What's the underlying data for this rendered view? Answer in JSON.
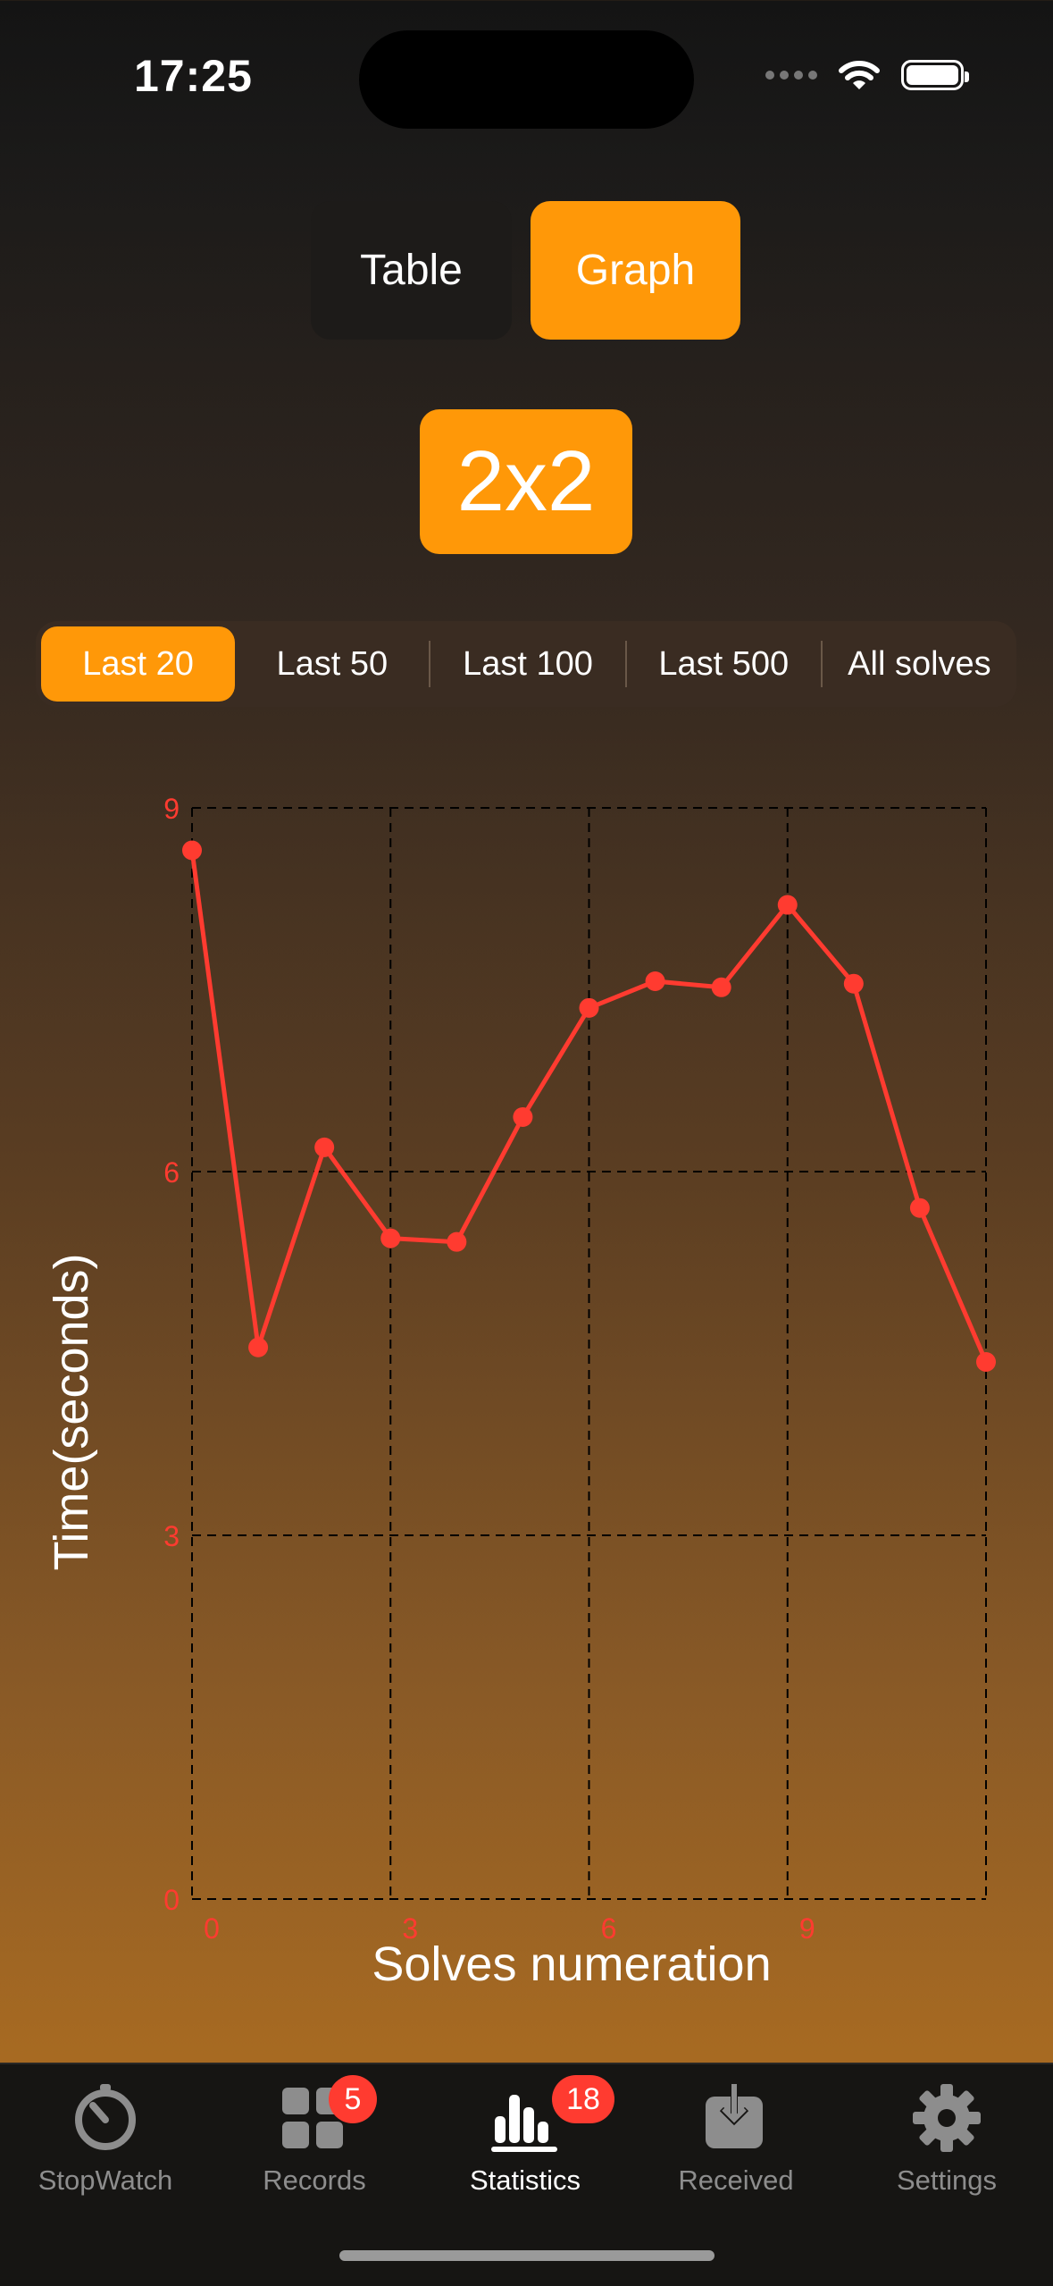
{
  "status": {
    "time": "17:25"
  },
  "mode": {
    "table_label": "Table",
    "graph_label": "Graph",
    "active": "Graph"
  },
  "puzzle": {
    "label": "2x2"
  },
  "ranges": [
    "Last 20",
    "Last 50",
    "Last 100",
    "Last 500",
    "All solves"
  ],
  "active_range": "Last 20",
  "colors": {
    "accent": "#ff9808",
    "line": "#ff3b30",
    "badge": "#ff3b30"
  },
  "chart_data": {
    "type": "line",
    "xlabel": "Solves numeration",
    "ylabel": "Time(seconds)",
    "ylim": [
      0,
      9
    ],
    "yticks": [
      0,
      3,
      6,
      9
    ],
    "xticks": [
      0,
      3,
      6,
      9
    ],
    "xlim": [
      0,
      12
    ],
    "grid": true,
    "series": [
      {
        "x": [
          0,
          1,
          2,
          3,
          4,
          5,
          6,
          7,
          8,
          9,
          10,
          11,
          12
        ],
        "values": [
          8.65,
          4.55,
          6.2,
          5.45,
          5.42,
          6.45,
          7.35,
          7.57,
          7.52,
          8.2,
          7.55,
          5.7,
          4.43
        ]
      }
    ]
  },
  "tabs": [
    {
      "label": "StopWatch",
      "icon": "stopwatch-icon",
      "badge": ""
    },
    {
      "label": "Records",
      "icon": "grid-icon",
      "badge": "5"
    },
    {
      "label": "Statistics",
      "icon": "chart-icon",
      "badge": "18"
    },
    {
      "label": "Received",
      "icon": "download-tray-icon",
      "badge": ""
    },
    {
      "label": "Settings",
      "icon": "gear-icon",
      "badge": ""
    }
  ],
  "active_tab": "Statistics"
}
